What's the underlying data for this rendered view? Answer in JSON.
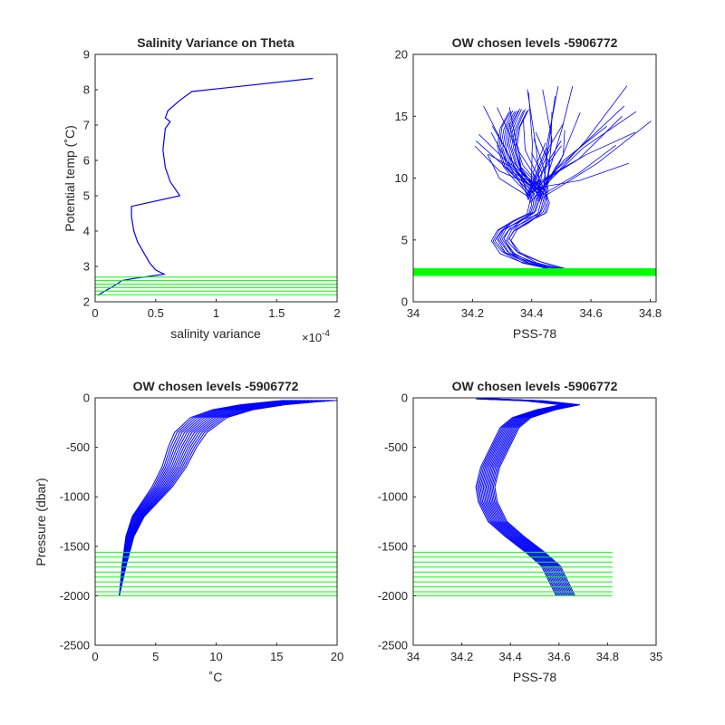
{
  "figure": {
    "background": "#ffffff"
  },
  "colors": {
    "profile": "#0000ff",
    "levels": "#00ff00",
    "axes": "#262626"
  },
  "chart_data": [
    {
      "id": "p1",
      "type": "line",
      "title": "Salinity Variance on Theta",
      "xlabel": "salinity variance",
      "ylabel": "Potential temp (˚C)",
      "xlim": [
        0,
        2
      ],
      "ylim": [
        2,
        9
      ],
      "x_exponent_label": "×10",
      "x_exponent_power": "-4",
      "xticks": [
        0,
        0.5,
        1,
        1.5,
        2
      ],
      "xtick_labels": [
        "0",
        "0.5",
        "1",
        "1.5",
        "2"
      ],
      "yticks": [
        2,
        3,
        4,
        5,
        6,
        7,
        8,
        9
      ],
      "ytick_labels": [
        "2",
        "3",
        "4",
        "5",
        "6",
        "7",
        "8",
        "9"
      ],
      "series": [
        {
          "x": [
            1.8,
            0.8,
            0.7,
            0.6,
            0.58,
            0.62,
            0.58,
            0.56,
            0.58,
            0.62,
            0.7,
            0.3,
            0.3,
            0.32,
            0.35,
            0.4,
            0.45,
            0.5,
            0.57,
            0.45,
            0.32,
            0.22,
            0.18,
            0.14,
            0.1,
            0.06,
            0.03,
            0.02
          ],
          "y": [
            8.32,
            7.95,
            7.7,
            7.4,
            7.2,
            7.1,
            6.9,
            6.3,
            5.8,
            5.4,
            5.0,
            4.7,
            4.4,
            4.0,
            3.7,
            3.4,
            3.1,
            2.9,
            2.78,
            2.72,
            2.66,
            2.6,
            2.5,
            2.42,
            2.34,
            2.26,
            2.2,
            2.18
          ]
        }
      ],
      "level_lines": [
        2.2,
        2.3,
        2.4,
        2.5,
        2.6,
        2.7
      ],
      "level_x": [
        0,
        2
      ]
    },
    {
      "id": "p2",
      "type": "line",
      "title": "OW chosen levels -5906772",
      "xlabel": "PSS-78",
      "ylabel": "",
      "xlim": [
        34,
        34.82
      ],
      "ylim": [
        0,
        20
      ],
      "xticks": [
        34,
        34.2,
        34.4,
        34.6,
        34.8
      ],
      "xtick_labels": [
        "34",
        "34.2",
        "34.4",
        "34.6",
        "34.8"
      ],
      "yticks": [
        0,
        5,
        10,
        15,
        20
      ],
      "ytick_labels": [
        "0",
        "5",
        "10",
        "15",
        "20"
      ],
      "level_lines": [
        2.2,
        2.25,
        2.3,
        2.35,
        2.4,
        2.45,
        2.5,
        2.55,
        2.6
      ],
      "level_x": [
        34,
        34.82
      ]
    },
    {
      "id": "p3",
      "type": "line",
      "title": "OW chosen levels -5906772",
      "xlabel": "˚C",
      "ylabel": "Pressure (dbar)",
      "xlim": [
        0,
        20
      ],
      "ylim": [
        -2500,
        0
      ],
      "xticks": [
        0,
        5,
        10,
        15,
        20
      ],
      "xtick_labels": [
        "0",
        "5",
        "10",
        "15",
        "20"
      ],
      "yticks": [
        -2500,
        -2000,
        -1500,
        -1000,
        -500,
        0
      ],
      "ytick_labels": [
        "-2500",
        "-2000",
        "-1500",
        "-1000",
        "-500",
        "0"
      ],
      "level_lines": [
        -1560,
        -1610,
        -1660,
        -1710,
        -1760,
        -1810,
        -1860,
        -1910,
        -1960,
        -2000
      ],
      "level_x": [
        0,
        20
      ]
    },
    {
      "id": "p4",
      "type": "line",
      "title": "OW chosen levels -5906772",
      "xlabel": "PSS-78",
      "ylabel": "",
      "xlim": [
        34,
        35
      ],
      "ylim": [
        -2500,
        0
      ],
      "xticks": [
        34,
        34.2,
        34.4,
        34.6,
        34.8,
        35
      ],
      "xtick_labels": [
        "34",
        "34.2",
        "34.4",
        "34.6",
        "34.8",
        "35"
      ],
      "yticks": [
        -2500,
        -2000,
        -1500,
        -1000,
        -500,
        0
      ],
      "ytick_labels": [
        "-2500",
        "-2000",
        "-1500",
        "-1000",
        "-500",
        "0"
      ],
      "level_lines": [
        -1560,
        -1610,
        -1660,
        -1710,
        -1760,
        -1810,
        -1860,
        -1910,
        -1960,
        -2000
      ],
      "level_x": [
        34,
        34.82
      ]
    }
  ]
}
